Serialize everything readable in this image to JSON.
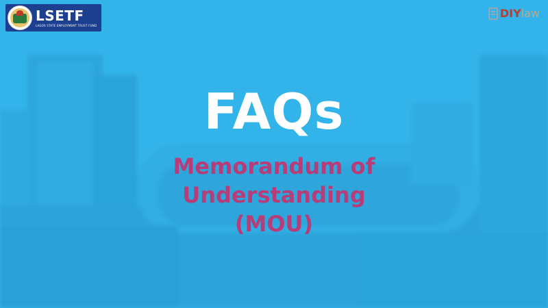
{
  "branding": {
    "left_logo_title": "LSETF",
    "left_logo_subtitle": "LAGOS STATE EMPLOYMENT TRUST FUND",
    "right_logo_strong": "DIY",
    "right_logo_light": "law"
  },
  "slide": {
    "title": "FAQs",
    "subtitle_lines": [
      "Memorandum of",
      "Understanding",
      "(MOU)"
    ]
  },
  "colors": {
    "background": "#33b4ea",
    "title": "#ffffff",
    "subtitle": "#b83c77",
    "logo_box": "#1c3f8f"
  }
}
